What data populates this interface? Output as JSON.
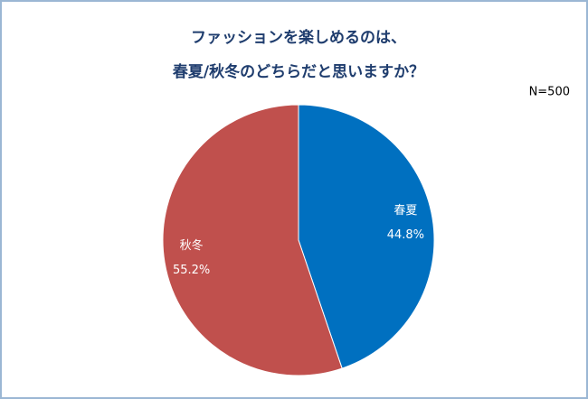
{
  "chart_data": {
    "type": "pie",
    "title": [
      "ファッションを楽しめるのは、",
      "春夏/秋冬のどちらだと思いますか？"
    ],
    "subtitle": "N=500",
    "categories": [
      "春夏",
      "秋冬"
    ],
    "values": [
      44.8,
      55.2
    ],
    "value_labels": [
      "44.8%",
      "55.2%"
    ],
    "colors": [
      "#0070c0",
      "#c0504d"
    ]
  }
}
